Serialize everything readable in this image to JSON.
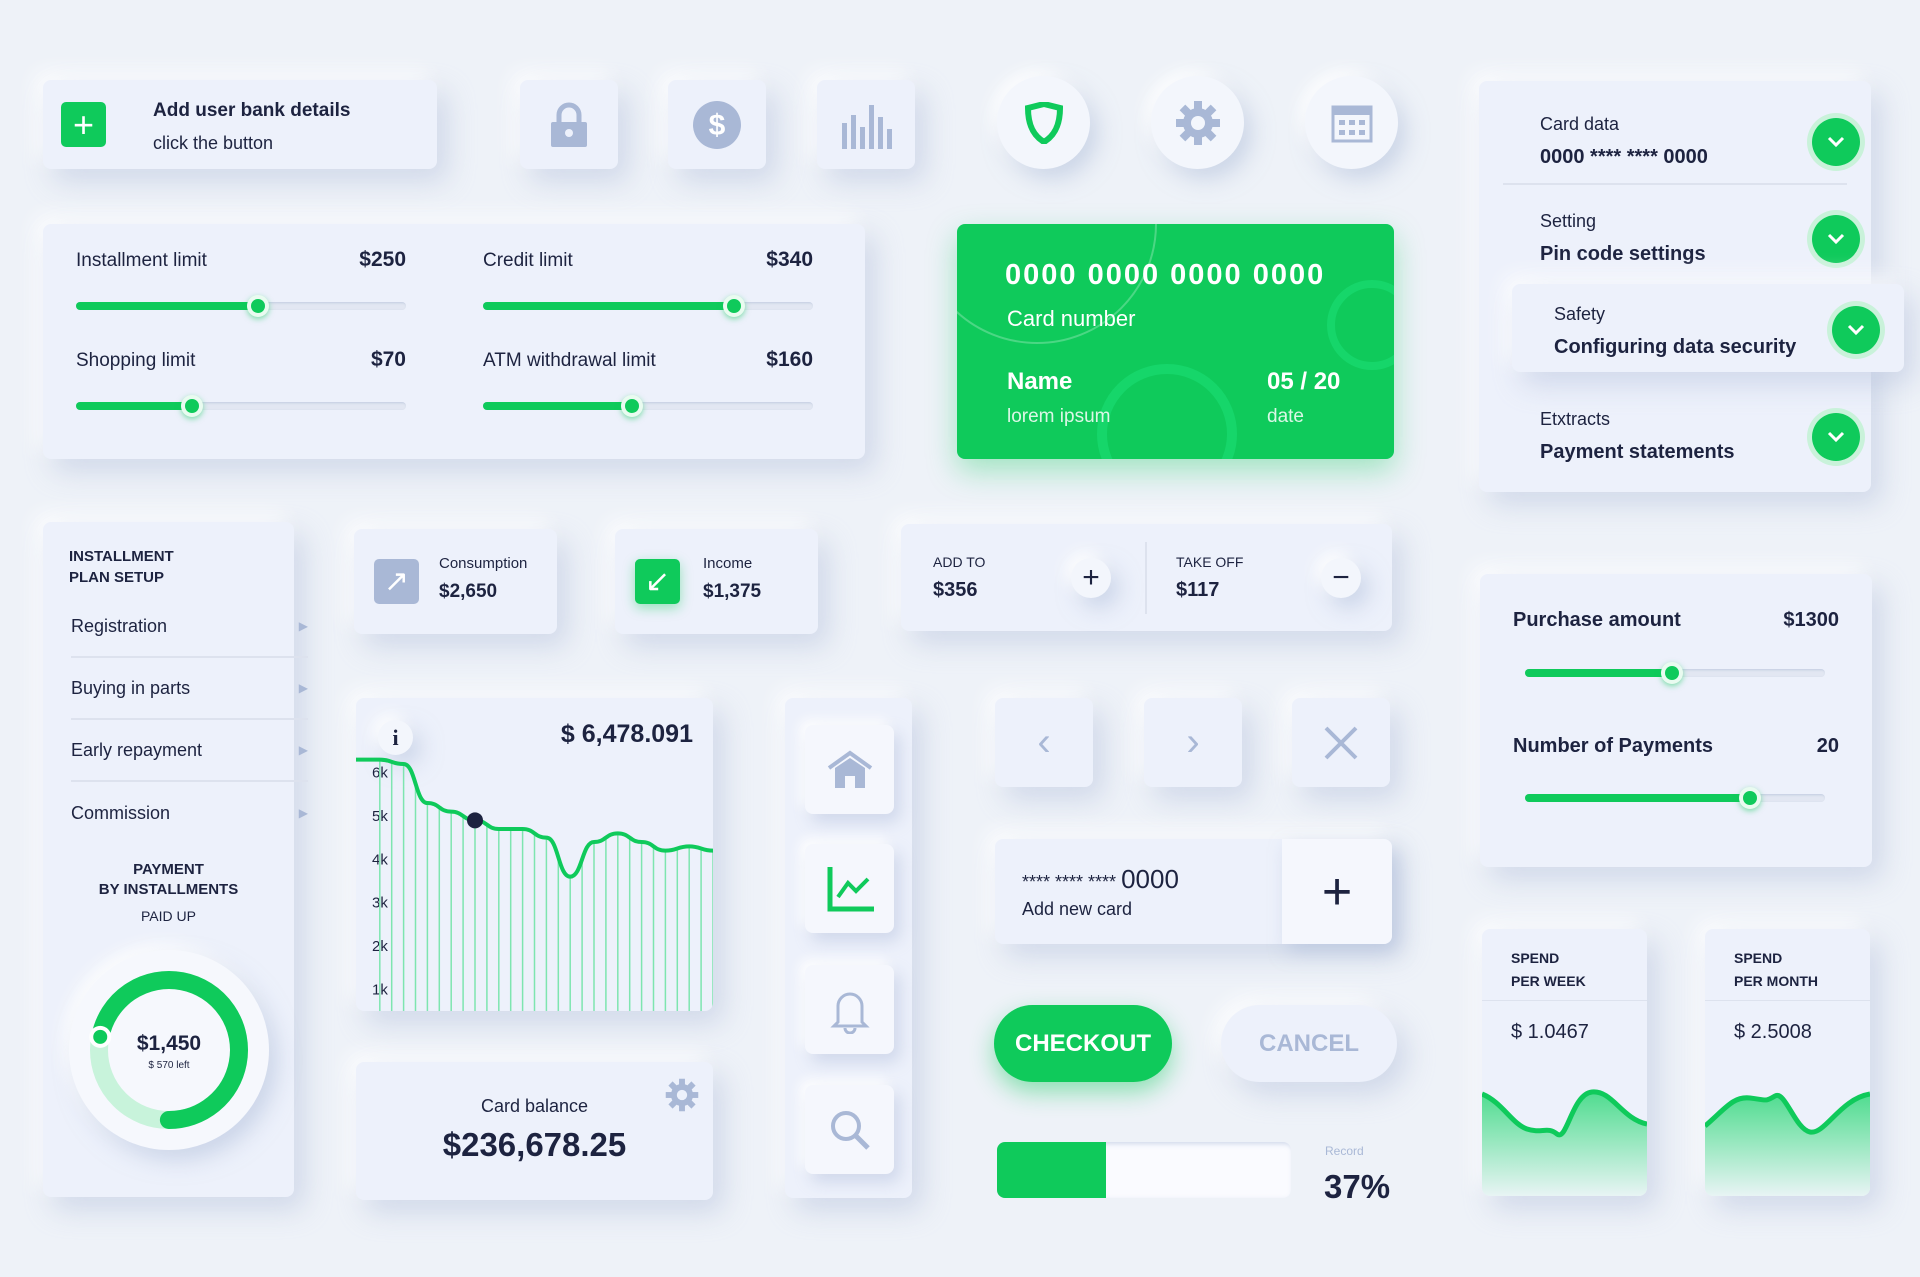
{
  "add_user": {
    "title": "Add user bank details",
    "subtitle": "click the button"
  },
  "icons": [
    "lock-icon",
    "dollar-icon",
    "bar-chart-icon",
    "shield-icon",
    "gear-icon",
    "calendar-icon"
  ],
  "limits": [
    {
      "label": "Installment limit",
      "value": "$250",
      "level": 0.55
    },
    {
      "label": "Credit limit",
      "value": "$340",
      "level": 0.76
    },
    {
      "label": "Shopping limit",
      "value": "$70",
      "level": 0.35
    },
    {
      "label": "ATM withdrawal limit",
      "value": "$160",
      "level": 0.45
    }
  ],
  "card": {
    "number": "0000 0000 0000 0000",
    "number_label": "Card number",
    "name": "Name",
    "name_value": "lorem ipsum",
    "date": "05 / 20",
    "date_label": "date"
  },
  "accordion": [
    {
      "title": "Card data",
      "value": "0000 **** **** 0000"
    },
    {
      "title": "Setting",
      "value": "Pin code settings"
    },
    {
      "title": "Safety",
      "value": "Configuring data security"
    },
    {
      "title": "Etxtracts",
      "value": "Payment statements"
    }
  ],
  "installment": {
    "title1": "INSTALLMENT",
    "title2": "PLAN SETUP",
    "items": [
      "Registration",
      "Buying in parts",
      "Early repayment",
      "Commission"
    ],
    "payment1": "PAYMENT",
    "payment2": "BY INSTALLMENTS",
    "paid": "PAID UP",
    "amount": "$1,450",
    "left": "$ 570 left",
    "progress": 0.72
  },
  "consumption": {
    "label": "Consumption",
    "value": "$2,650"
  },
  "income": {
    "label": "Income",
    "value": "$1,375"
  },
  "add_to": {
    "label": "ADD TO",
    "value": "$356"
  },
  "take_off": {
    "label": "TAKE OFF",
    "value": "$117"
  },
  "purchase": {
    "label": "Purchase amount",
    "value": "$1300",
    "level": 0.49
  },
  "payments": {
    "label": "Number of Payments",
    "value": "20",
    "level": 0.75
  },
  "chart_data": {
    "type": "line",
    "title": "$ 6,478.091",
    "yticks": [
      "6k",
      "5k",
      "4k",
      "3k",
      "2k",
      "1k"
    ],
    "ylim": [
      0.5,
      6.8
    ],
    "values": [
      6.3,
      6.3,
      6.2,
      5.3,
      5.1,
      4.9,
      4.7,
      4.7,
      4.5,
      3.6,
      4.4,
      4.6,
      4.4,
      4.2,
      4.3,
      4.2
    ],
    "highlight_index": 5
  },
  "new_card": {
    "number": "**** **** ****",
    "last": "0000",
    "label": "Add new card"
  },
  "checkout": "CHECKOUT",
  "cancel": "CANCEL",
  "balance": {
    "label": "Card balance",
    "value": "$236,678.25"
  },
  "progress": {
    "label": "Record",
    "value": "37%",
    "level": 0.37
  },
  "spend_week": {
    "l1": "SPEND",
    "l2": "PER WEEK",
    "value": "$ 1.0467"
  },
  "spend_month": {
    "l1": "SPEND",
    "l2": "PER MONTH",
    "value": "$ 2.5008"
  },
  "colors": {
    "accent": "#0fca5b",
    "text": "#1d2340",
    "muted": "#a9b8d6"
  }
}
